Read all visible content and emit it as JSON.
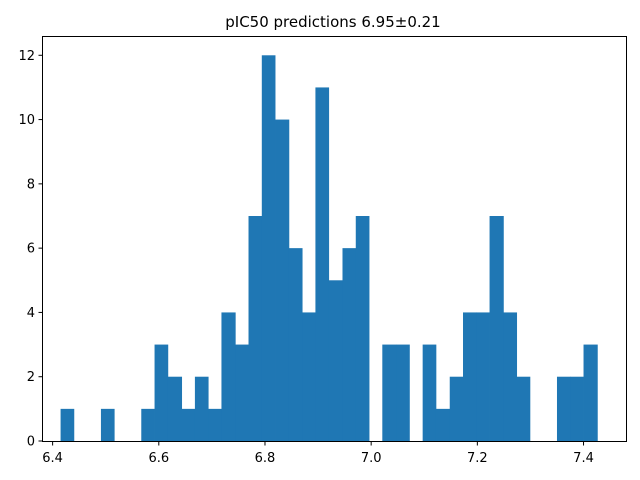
{
  "chart_data": {
    "type": "bar",
    "subtype": "histogram",
    "title": "pIC50 predictions 6.95±0.21",
    "xlabel": "",
    "ylabel": "",
    "xlim": [
      6.38,
      7.48
    ],
    "ylim": [
      0,
      12.6
    ],
    "bin_width": 0.02525,
    "bins": [
      {
        "x0": 6.415,
        "x1": 6.44,
        "count": 1
      },
      {
        "x0": 6.491,
        "x1": 6.516,
        "count": 1
      },
      {
        "x0": 6.567,
        "x1": 6.592,
        "count": 1
      },
      {
        "x0": 6.592,
        "x1": 6.617,
        "count": 3
      },
      {
        "x0": 6.617,
        "x1": 6.643,
        "count": 2
      },
      {
        "x0": 6.643,
        "x1": 6.668,
        "count": 1
      },
      {
        "x0": 6.668,
        "x1": 6.693,
        "count": 2
      },
      {
        "x0": 6.693,
        "x1": 6.718,
        "count": 1
      },
      {
        "x0": 6.718,
        "x1": 6.744,
        "count": 4
      },
      {
        "x0": 6.744,
        "x1": 6.769,
        "count": 3
      },
      {
        "x0": 6.769,
        "x1": 6.794,
        "count": 7
      },
      {
        "x0": 6.794,
        "x1": 6.819,
        "count": 12
      },
      {
        "x0": 6.819,
        "x1": 6.845,
        "count": 10
      },
      {
        "x0": 6.845,
        "x1": 6.87,
        "count": 6
      },
      {
        "x0": 6.87,
        "x1": 6.895,
        "count": 4
      },
      {
        "x0": 6.895,
        "x1": 6.92,
        "count": 11
      },
      {
        "x0": 6.92,
        "x1": 6.946,
        "count": 5
      },
      {
        "x0": 6.946,
        "x1": 6.971,
        "count": 6
      },
      {
        "x0": 6.971,
        "x1": 6.996,
        "count": 7
      },
      {
        "x0": 7.021,
        "x1": 7.047,
        "count": 3
      },
      {
        "x0": 7.047,
        "x1": 7.072,
        "count": 3
      },
      {
        "x0": 7.097,
        "x1": 7.122,
        "count": 3
      },
      {
        "x0": 7.122,
        "x1": 7.148,
        "count": 1
      },
      {
        "x0": 7.148,
        "x1": 7.173,
        "count": 2
      },
      {
        "x0": 7.173,
        "x1": 7.198,
        "count": 4
      },
      {
        "x0": 7.198,
        "x1": 7.223,
        "count": 4
      },
      {
        "x0": 7.223,
        "x1": 7.249,
        "count": 7
      },
      {
        "x0": 7.249,
        "x1": 7.274,
        "count": 4
      },
      {
        "x0": 7.274,
        "x1": 7.299,
        "count": 2
      },
      {
        "x0": 7.35,
        "x1": 7.375,
        "count": 2
      },
      {
        "x0": 7.375,
        "x1": 7.4,
        "count": 2
      },
      {
        "x0": 7.4,
        "x1": 7.426,
        "count": 3
      }
    ],
    "x_ticks": [
      {
        "value": 6.4,
        "label": "6.4"
      },
      {
        "value": 6.6,
        "label": "6.6"
      },
      {
        "value": 6.8,
        "label": "6.8"
      },
      {
        "value": 7.0,
        "label": "7.0"
      },
      {
        "value": 7.2,
        "label": "7.2"
      },
      {
        "value": 7.4,
        "label": "7.4"
      }
    ],
    "y_ticks": [
      {
        "value": 0,
        "label": "0"
      },
      {
        "value": 2,
        "label": "2"
      },
      {
        "value": 4,
        "label": "4"
      },
      {
        "value": 6,
        "label": "6"
      },
      {
        "value": 8,
        "label": "8"
      },
      {
        "value": 10,
        "label": "10"
      },
      {
        "value": 12,
        "label": "12"
      }
    ],
    "bar_color": "#1f77b4",
    "grid": false,
    "legend": "none"
  }
}
